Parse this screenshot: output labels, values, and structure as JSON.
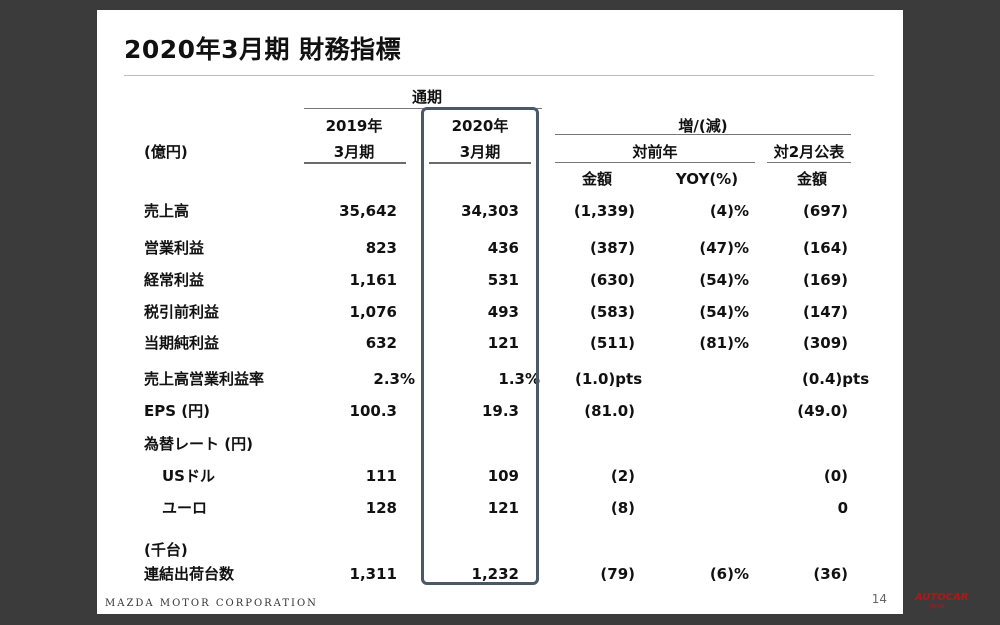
{
  "title": "2020年3月期 財務指標",
  "header": {
    "full_year": "通期",
    "col_2019_year": "2019年",
    "col_2019_period": "3月期",
    "col_2020_year": "2020年",
    "col_2020_period": "3月期",
    "unit": "(億円)",
    "increase_decrease": "増/(減)",
    "vs_prior_year": "対前年",
    "vs_feb_forecast": "対2月公表",
    "amount": "金額",
    "yoy": "YOY(%)",
    "amount2": "金額"
  },
  "rows": [
    {
      "label": "売上高",
      "v2019": "35,642",
      "v2020": "34,303",
      "diff": "(1,339)",
      "yoy": "(4)%",
      "vs_feb": "(697)"
    },
    {
      "label": "営業利益",
      "v2019": "823",
      "v2020": "436",
      "diff": "(387)",
      "yoy": "(47)%",
      "vs_feb": "(164)"
    },
    {
      "label": "経常利益",
      "v2019": "1,161",
      "v2020": "531",
      "diff": "(630)",
      "yoy": "(54)%",
      "vs_feb": "(169)"
    },
    {
      "label": "税引前利益",
      "v2019": "1,076",
      "v2020": "493",
      "diff": "(583)",
      "yoy": "(54)%",
      "vs_feb": "(147)"
    },
    {
      "label": "当期純利益",
      "v2019": "632",
      "v2020": "121",
      "diff": "(511)",
      "yoy": "(81)%",
      "vs_feb": "(309)"
    },
    {
      "label": "売上高営業利益率",
      "v2019": "2.3%",
      "v2020": "1.3%",
      "diff": "(1.0)pts",
      "yoy": "",
      "vs_feb": "(0.4)pts"
    },
    {
      "label": "EPS (円)",
      "v2019": "100.3",
      "v2020": "19.3",
      "diff": "(81.0)",
      "yoy": "",
      "vs_feb": "(49.0)"
    },
    {
      "label": "為替レート (円)",
      "v2019": "",
      "v2020": "",
      "diff": "",
      "yoy": "",
      "vs_feb": ""
    },
    {
      "label": "USドル",
      "v2019": "111",
      "v2020": "109",
      "diff": "(2)",
      "yoy": "",
      "vs_feb": "(0)"
    },
    {
      "label": "ユーロ",
      "v2019": "128",
      "v2020": "121",
      "diff": "(8)",
      "yoy": "",
      "vs_feb": "0"
    },
    {
      "label": "(千台)",
      "v2019": "",
      "v2020": "",
      "diff": "",
      "yoy": "",
      "vs_feb": ""
    },
    {
      "label": "連結出荷台数",
      "v2019": "1,311",
      "v2020": "1,232",
      "diff": "(79)",
      "yoy": "(6)%",
      "vs_feb": "(36)"
    }
  ],
  "footer": {
    "brand": "MAZDA MOTOR CORPORATION",
    "page": "14"
  },
  "watermark": {
    "text": "AUTOCAR",
    "sub": "JAPAN"
  }
}
